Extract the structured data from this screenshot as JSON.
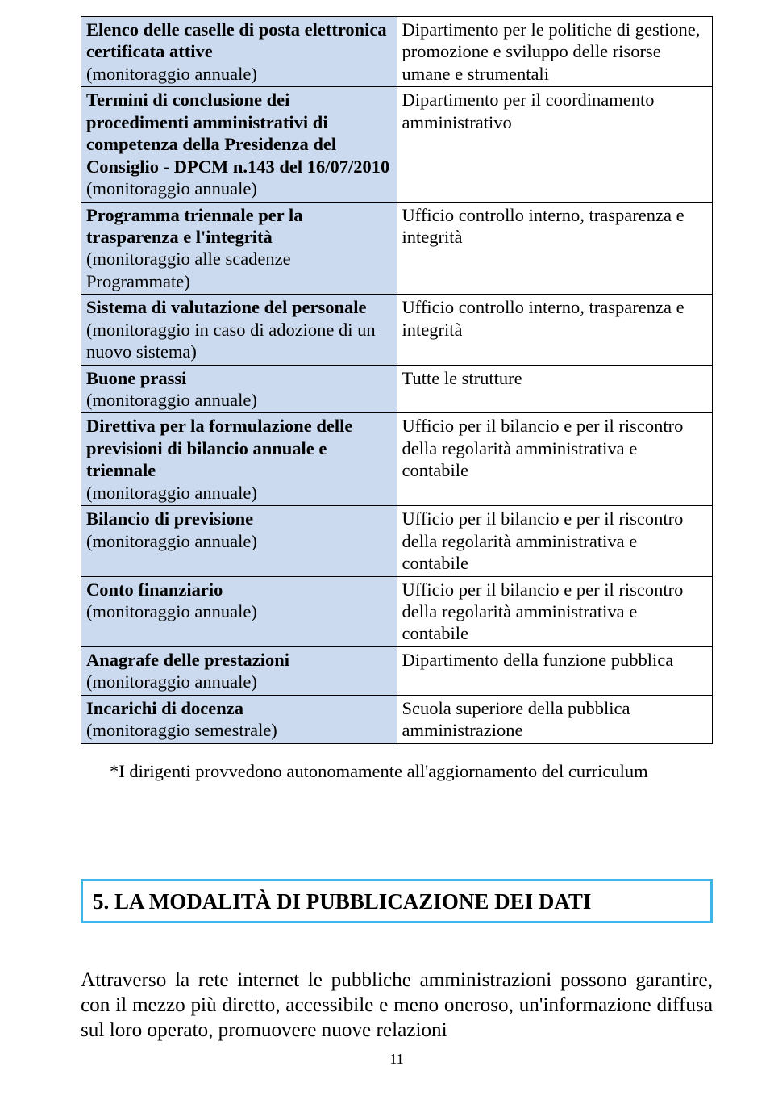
{
  "colors": {
    "left_cell_bg": "#cbdaee",
    "section_border": "#3fb4e6",
    "text": "#000000",
    "border": "#000000"
  },
  "typography": {
    "font_family": "Times New Roman",
    "table_fontsize_pt": 17,
    "section_title_fontsize_pt": 20,
    "body_fontsize_pt": 19,
    "footnote_fontsize_pt": 17,
    "page_num_fontsize_pt": 13
  },
  "table": {
    "type": "table",
    "columns": 2,
    "column_widths": [
      "50%",
      "50%"
    ],
    "rows": [
      {
        "left_bold": "Elenco delle caselle di posta elettronica certificata attive",
        "left_plain": "(monitoraggio annuale)",
        "right": "Dipartimento per le politiche di gestione, promozione e sviluppo delle risorse umane e strumentali"
      },
      {
        "left_bold": "Termini di conclusione dei procedimenti amministrativi di competenza della Presidenza del Consiglio - DPCM n.143 del 16/07/2010",
        "left_plain": "(monitoraggio annuale)",
        "right": "Dipartimento per il coordinamento amministrativo"
      },
      {
        "left_bold": "Programma triennale per la trasparenza e l'integrità",
        "left_plain": "(monitoraggio alle scadenze Programmate)",
        "right": "Ufficio controllo interno, trasparenza e integrità"
      },
      {
        "left_bold": "Sistema di valutazione del personale",
        "left_plain": "(monitoraggio in caso di adozione di un nuovo sistema)",
        "right": "Ufficio controllo interno, trasparenza e integrità"
      },
      {
        "left_bold": "Buone prassi",
        "left_plain": "(monitoraggio annuale)",
        "right": "Tutte le strutture"
      },
      {
        "left_bold": "Direttiva per la formulazione delle previsioni di bilancio annuale e triennale",
        "left_plain": "(monitoraggio annuale)",
        "right": "Ufficio per il bilancio e per il riscontro della regolarità amministrativa e contabile"
      },
      {
        "left_bold": "Bilancio di previsione",
        "left_plain": "(monitoraggio annuale)",
        "right": "Ufficio per il bilancio e per il riscontro della regolarità amministrativa e contabile"
      },
      {
        "left_bold": "Conto finanziario",
        "left_plain": "(monitoraggio annuale)",
        "right": "Ufficio per il bilancio e per il riscontro della regolarità amministrativa e contabile"
      },
      {
        "left_bold": "Anagrafe delle prestazioni",
        "left_plain": "(monitoraggio annuale)",
        "right": "Dipartimento della funzione pubblica"
      },
      {
        "left_bold": "Incarichi di docenza",
        "left_plain": "(monitoraggio semestrale)",
        "right": "Scuola superiore della pubblica amministrazione"
      }
    ]
  },
  "footnote": "*I dirigenti provvedono autonomamente all'aggiornamento del curriculum",
  "section_title": "5. LA MODALITÀ DI PUBBLICAZIONE DEI DATI",
  "body_paragraph": "Attraverso la rete internet le pubbliche amministrazioni possono garantire, con il mezzo più diretto, accessibile e meno oneroso, un'informazione diffusa sul loro operato, promuovere nuove relazioni",
  "page_number": "11"
}
